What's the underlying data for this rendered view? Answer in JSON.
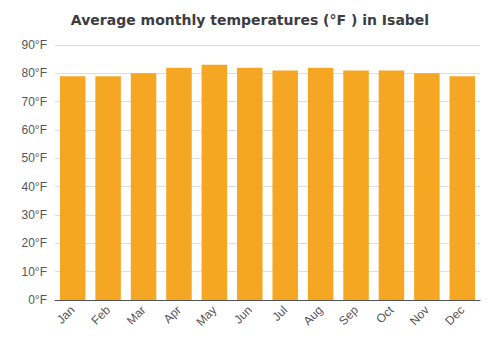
{
  "chart_data": {
    "type": "bar",
    "title": "Average monthly temperatures (°F ) in Isabel",
    "categories": [
      "Jan",
      "Feb",
      "Mar",
      "Apr",
      "May",
      "Jun",
      "Jul",
      "Aug",
      "Sep",
      "Oct",
      "Nov",
      "Dec"
    ],
    "values": [
      79,
      79,
      80,
      82,
      83,
      82,
      81,
      82,
      81,
      81,
      80,
      79
    ],
    "color": "#F5A623",
    "ylim": [
      0,
      90
    ],
    "yticks": [
      {
        "value": 0,
        "label": "0°F"
      },
      {
        "value": 10,
        "label": "10°F"
      },
      {
        "value": 20,
        "label": "20°F"
      },
      {
        "value": 30,
        "label": "30°F"
      },
      {
        "value": 40,
        "label": "40°F"
      },
      {
        "value": 50,
        "label": "50°F"
      },
      {
        "value": 60,
        "label": "60°F"
      },
      {
        "value": 70,
        "label": "70°F"
      },
      {
        "value": 80,
        "label": "80°F"
      },
      {
        "value": 90,
        "label": "90°F"
      }
    ],
    "grid": true
  }
}
